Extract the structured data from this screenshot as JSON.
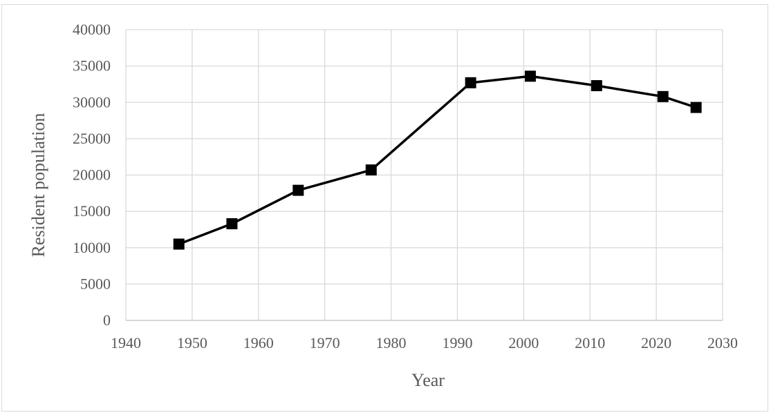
{
  "chart_data": {
    "type": "scatter",
    "title": "",
    "xlabel": "Year",
    "ylabel": "Resident population",
    "xlim": [
      1940,
      2030
    ],
    "ylim": [
      0,
      40000
    ],
    "x_ticks": [
      "1940",
      "1950",
      "1960",
      "1970",
      "1980",
      "1990",
      "2000",
      "2010",
      "2020",
      "2030"
    ],
    "y_ticks": [
      "0",
      "5000",
      "10000",
      "15000",
      "20000",
      "25000",
      "30000",
      "35000",
      "40000"
    ],
    "grid": true,
    "legend": "none",
    "marker": "square",
    "line_color": "#000000",
    "grid_color": "#d9d9d9",
    "series": [
      {
        "x": [
          1948,
          1956,
          1966,
          1977,
          1992,
          2001,
          2011,
          2021,
          2026
        ],
        "y": [
          10500,
          13300,
          17900,
          20700,
          32700,
          33600,
          32300,
          30800,
          29300
        ]
      }
    ]
  }
}
